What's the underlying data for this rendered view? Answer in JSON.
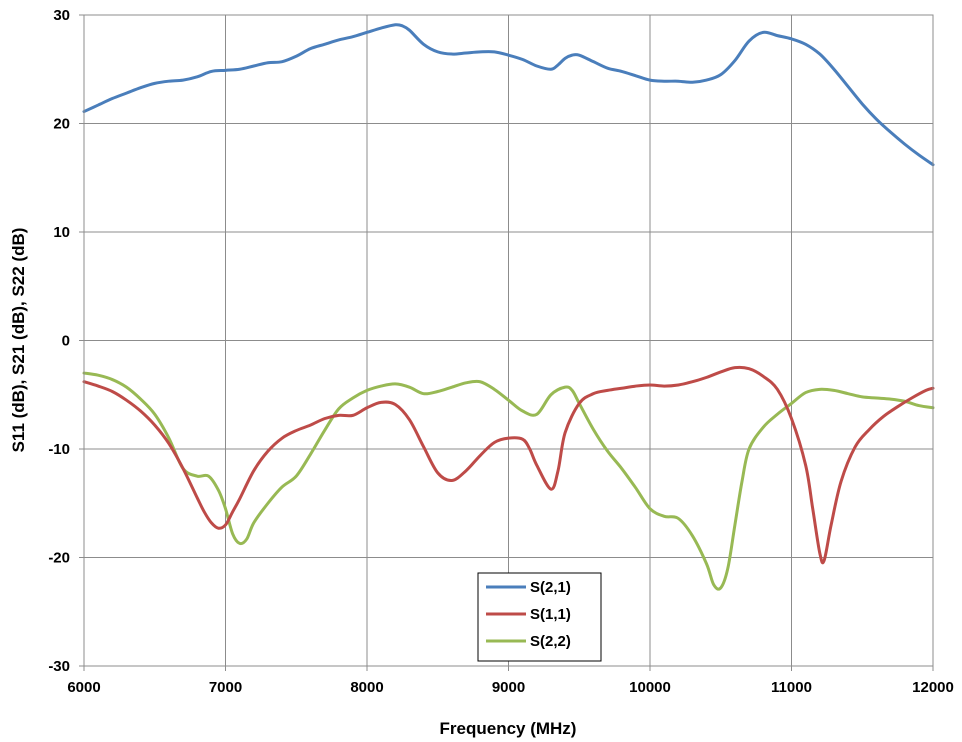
{
  "chart_data": {
    "type": "line",
    "title": "",
    "xlabel": "Frequency (MHz)",
    "ylabel": "S11 (dB), S21 (dB), S22 (dB)",
    "xlim": [
      6000,
      12000
    ],
    "ylim": [
      -30,
      30
    ],
    "xticks": [
      6000,
      7000,
      8000,
      9000,
      10000,
      11000,
      12000
    ],
    "yticks": [
      -30,
      -20,
      -10,
      0,
      10,
      20,
      30
    ],
    "grid": true,
    "legend_position": "bottom-center",
    "series": [
      {
        "name": "S(2,1)",
        "color": "#4a7ebb",
        "points": [
          [
            6000,
            21.1
          ],
          [
            6100,
            21.7
          ],
          [
            6200,
            22.3
          ],
          [
            6300,
            22.8
          ],
          [
            6400,
            23.3
          ],
          [
            6500,
            23.7
          ],
          [
            6600,
            23.9
          ],
          [
            6700,
            24.0
          ],
          [
            6800,
            24.3
          ],
          [
            6900,
            24.8
          ],
          [
            7000,
            24.9
          ],
          [
            7100,
            25.0
          ],
          [
            7200,
            25.3
          ],
          [
            7300,
            25.6
          ],
          [
            7400,
            25.7
          ],
          [
            7500,
            26.2
          ],
          [
            7600,
            26.9
          ],
          [
            7700,
            27.3
          ],
          [
            7800,
            27.7
          ],
          [
            7900,
            28.0
          ],
          [
            8000,
            28.4
          ],
          [
            8100,
            28.8
          ],
          [
            8200,
            29.1
          ],
          [
            8250,
            29.0
          ],
          [
            8300,
            28.6
          ],
          [
            8400,
            27.3
          ],
          [
            8500,
            26.6
          ],
          [
            8600,
            26.4
          ],
          [
            8700,
            26.5
          ],
          [
            8800,
            26.6
          ],
          [
            8900,
            26.6
          ],
          [
            9000,
            26.3
          ],
          [
            9100,
            25.9
          ],
          [
            9200,
            25.3
          ],
          [
            9300,
            25.0
          ],
          [
            9350,
            25.4
          ],
          [
            9400,
            26.0
          ],
          [
            9450,
            26.3
          ],
          [
            9500,
            26.3
          ],
          [
            9600,
            25.7
          ],
          [
            9700,
            25.1
          ],
          [
            9800,
            24.8
          ],
          [
            9900,
            24.4
          ],
          [
            10000,
            24.0
          ],
          [
            10100,
            23.9
          ],
          [
            10200,
            23.9
          ],
          [
            10300,
            23.8
          ],
          [
            10400,
            24.0
          ],
          [
            10500,
            24.5
          ],
          [
            10600,
            25.8
          ],
          [
            10700,
            27.6
          ],
          [
            10800,
            28.4
          ],
          [
            10900,
            28.1
          ],
          [
            11000,
            27.8
          ],
          [
            11100,
            27.3
          ],
          [
            11200,
            26.4
          ],
          [
            11300,
            25.0
          ],
          [
            11400,
            23.4
          ],
          [
            11500,
            21.8
          ],
          [
            11600,
            20.4
          ],
          [
            11700,
            19.2
          ],
          [
            11800,
            18.1
          ],
          [
            11900,
            17.1
          ],
          [
            12000,
            16.2
          ]
        ]
      },
      {
        "name": "S(1,1)",
        "color": "#be4b48",
        "points": [
          [
            6000,
            -3.8
          ],
          [
            6100,
            -4.2
          ],
          [
            6200,
            -4.7
          ],
          [
            6300,
            -5.5
          ],
          [
            6400,
            -6.5
          ],
          [
            6500,
            -7.8
          ],
          [
            6600,
            -9.5
          ],
          [
            6700,
            -11.8
          ],
          [
            6800,
            -14.5
          ],
          [
            6850,
            -15.8
          ],
          [
            6900,
            -16.8
          ],
          [
            6950,
            -17.3
          ],
          [
            7000,
            -17.0
          ],
          [
            7050,
            -15.8
          ],
          [
            7100,
            -14.6
          ],
          [
            7200,
            -12.0
          ],
          [
            7300,
            -10.2
          ],
          [
            7400,
            -9.0
          ],
          [
            7500,
            -8.3
          ],
          [
            7600,
            -7.8
          ],
          [
            7700,
            -7.2
          ],
          [
            7800,
            -6.9
          ],
          [
            7900,
            -6.9
          ],
          [
            8000,
            -6.2
          ],
          [
            8100,
            -5.7
          ],
          [
            8200,
            -5.9
          ],
          [
            8300,
            -7.3
          ],
          [
            8400,
            -9.8
          ],
          [
            8500,
            -12.2
          ],
          [
            8600,
            -12.9
          ],
          [
            8700,
            -12.0
          ],
          [
            8800,
            -10.6
          ],
          [
            8900,
            -9.4
          ],
          [
            9000,
            -9.0
          ],
          [
            9100,
            -9.1
          ],
          [
            9150,
            -10.0
          ],
          [
            9200,
            -11.5
          ],
          [
            9300,
            -13.7
          ],
          [
            9350,
            -12.0
          ],
          [
            9400,
            -8.5
          ],
          [
            9500,
            -5.8
          ],
          [
            9600,
            -4.9
          ],
          [
            9700,
            -4.6
          ],
          [
            9800,
            -4.4
          ],
          [
            9900,
            -4.2
          ],
          [
            10000,
            -4.1
          ],
          [
            10100,
            -4.2
          ],
          [
            10200,
            -4.1
          ],
          [
            10300,
            -3.8
          ],
          [
            10400,
            -3.4
          ],
          [
            10500,
            -2.9
          ],
          [
            10600,
            -2.5
          ],
          [
            10700,
            -2.6
          ],
          [
            10800,
            -3.3
          ],
          [
            10900,
            -4.5
          ],
          [
            11000,
            -7.2
          ],
          [
            11100,
            -11.5
          ],
          [
            11150,
            -15.5
          ],
          [
            11200,
            -19.6
          ],
          [
            11230,
            -20.3
          ],
          [
            11280,
            -17.0
          ],
          [
            11350,
            -13.0
          ],
          [
            11450,
            -9.8
          ],
          [
            11550,
            -8.2
          ],
          [
            11650,
            -7.0
          ],
          [
            11750,
            -6.1
          ],
          [
            11850,
            -5.3
          ],
          [
            11950,
            -4.6
          ],
          [
            12000,
            -4.4
          ]
        ]
      },
      {
        "name": "S(2,2)",
        "color": "#98b954",
        "points": [
          [
            6000,
            -3.0
          ],
          [
            6100,
            -3.2
          ],
          [
            6200,
            -3.6
          ],
          [
            6300,
            -4.3
          ],
          [
            6400,
            -5.4
          ],
          [
            6500,
            -6.8
          ],
          [
            6600,
            -9.0
          ],
          [
            6700,
            -11.8
          ],
          [
            6800,
            -12.5
          ],
          [
            6880,
            -12.5
          ],
          [
            6950,
            -13.8
          ],
          [
            7000,
            -15.5
          ],
          [
            7050,
            -17.8
          ],
          [
            7100,
            -18.7
          ],
          [
            7150,
            -18.3
          ],
          [
            7200,
            -16.8
          ],
          [
            7300,
            -15.0
          ],
          [
            7400,
            -13.5
          ],
          [
            7500,
            -12.5
          ],
          [
            7600,
            -10.5
          ],
          [
            7700,
            -8.3
          ],
          [
            7800,
            -6.3
          ],
          [
            7900,
            -5.3
          ],
          [
            8000,
            -4.6
          ],
          [
            8100,
            -4.2
          ],
          [
            8200,
            -4.0
          ],
          [
            8300,
            -4.3
          ],
          [
            8400,
            -4.9
          ],
          [
            8500,
            -4.7
          ],
          [
            8600,
            -4.3
          ],
          [
            8700,
            -3.9
          ],
          [
            8800,
            -3.8
          ],
          [
            8900,
            -4.5
          ],
          [
            9000,
            -5.5
          ],
          [
            9100,
            -6.5
          ],
          [
            9200,
            -6.8
          ],
          [
            9300,
            -5.0
          ],
          [
            9400,
            -4.3
          ],
          [
            9450,
            -4.6
          ],
          [
            9500,
            -5.8
          ],
          [
            9600,
            -8.2
          ],
          [
            9700,
            -10.2
          ],
          [
            9800,
            -11.8
          ],
          [
            9900,
            -13.6
          ],
          [
            10000,
            -15.5
          ],
          [
            10100,
            -16.2
          ],
          [
            10200,
            -16.4
          ],
          [
            10300,
            -18.0
          ],
          [
            10400,
            -20.6
          ],
          [
            10450,
            -22.5
          ],
          [
            10500,
            -22.8
          ],
          [
            10550,
            -21.0
          ],
          [
            10600,
            -17.0
          ],
          [
            10650,
            -13.0
          ],
          [
            10700,
            -10.0
          ],
          [
            10800,
            -8.0
          ],
          [
            10900,
            -6.8
          ],
          [
            11000,
            -5.8
          ],
          [
            11100,
            -4.8
          ],
          [
            11200,
            -4.5
          ],
          [
            11300,
            -4.6
          ],
          [
            11400,
            -4.9
          ],
          [
            11500,
            -5.2
          ],
          [
            11600,
            -5.3
          ],
          [
            11700,
            -5.4
          ],
          [
            11800,
            -5.6
          ],
          [
            11900,
            -6.0
          ],
          [
            12000,
            -6.2
          ]
        ]
      }
    ]
  }
}
